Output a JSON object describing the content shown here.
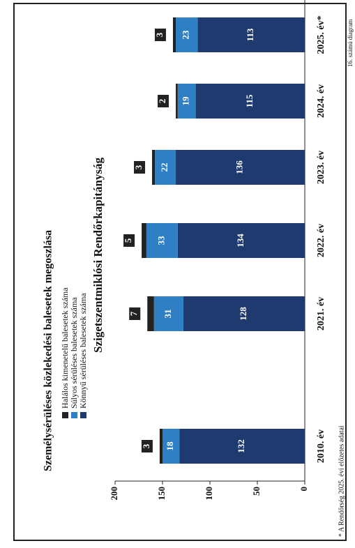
{
  "chart_data": {
    "type": "bar",
    "stacked": true,
    "title": "Szigetszentmiklósi Rendőrkapitányság",
    "subtitle": "Személysérüléses közlekedési balesetek megoszlása",
    "categories": [
      "2010. év",
      "2021. év",
      "2022. év",
      "2023. év",
      "2024. év",
      "2025. év*"
    ],
    "series": [
      {
        "name": "Könnyű sérüléses balesetek száma",
        "color": "#1e3a6e",
        "values": [
          132,
          128,
          134,
          136,
          115,
          113
        ]
      },
      {
        "name": "Súlyos sérüléses balesetek száma",
        "color": "#2f7fc4",
        "values": [
          18,
          31,
          33,
          22,
          19,
          23
        ]
      },
      {
        "name": "Halálos kimenetelű balesetek száma",
        "color": "#222222",
        "values": [
          3,
          7,
          5,
          3,
          2,
          3
        ]
      }
    ],
    "ylim": [
      0,
      200
    ],
    "yticks": [
      0,
      50,
      100,
      150,
      200
    ],
    "grid": false,
    "footnote": "* A Rendőrség 2025. évi előzetes adatai",
    "caption": "16. számú diagram"
  }
}
